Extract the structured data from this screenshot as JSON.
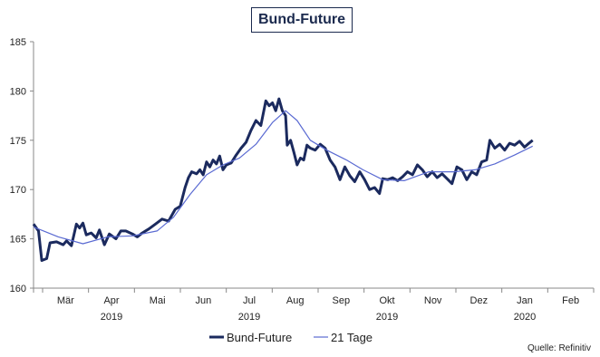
{
  "chart_data": {
    "type": "line",
    "title": "Bund-Future",
    "ylim": [
      160,
      185
    ],
    "yticks": [
      "160",
      "165",
      "170",
      "175",
      "180",
      "185"
    ],
    "xlim": [
      0,
      340
    ],
    "month_labels": [
      "Mär",
      "Apr",
      "Mai",
      "Jun",
      "Jul",
      "Aug",
      "Sep",
      "Okt",
      "Nov",
      "Dez",
      "Jan",
      "Feb"
    ],
    "year_labels": [
      "2019",
      "2019",
      "2019",
      "2020"
    ],
    "series": [
      {
        "name": "Bund-Future",
        "color": "#1b2a5e",
        "points": [
          [
            0,
            166.5
          ],
          [
            3,
            165.8
          ],
          [
            5,
            162.8
          ],
          [
            8,
            163.0
          ],
          [
            10,
            164.6
          ],
          [
            14,
            164.7
          ],
          [
            18,
            164.4
          ],
          [
            20,
            164.8
          ],
          [
            23,
            164.3
          ],
          [
            26,
            166.5
          ],
          [
            28,
            166.1
          ],
          [
            30,
            166.6
          ],
          [
            32,
            165.4
          ],
          [
            35,
            165.6
          ],
          [
            38,
            165.1
          ],
          [
            40,
            165.9
          ],
          [
            43,
            164.4
          ],
          [
            46,
            165.5
          ],
          [
            50,
            165.0
          ],
          [
            53,
            165.8
          ],
          [
            56,
            165.8
          ],
          [
            60,
            165.5
          ],
          [
            63,
            165.2
          ],
          [
            66,
            165.6
          ],
          [
            70,
            166.0
          ],
          [
            74,
            166.5
          ],
          [
            78,
            167.0
          ],
          [
            82,
            166.8
          ],
          [
            86,
            168.0
          ],
          [
            89,
            168.3
          ],
          [
            92,
            170.2
          ],
          [
            94,
            171.2
          ],
          [
            96,
            171.8
          ],
          [
            99,
            171.6
          ],
          [
            101,
            172.0
          ],
          [
            103,
            171.5
          ],
          [
            105,
            172.8
          ],
          [
            107,
            172.3
          ],
          [
            109,
            173.0
          ],
          [
            111,
            172.6
          ],
          [
            113,
            173.4
          ],
          [
            115,
            172.0
          ],
          [
            117,
            172.5
          ],
          [
            120,
            172.7
          ],
          [
            123,
            173.5
          ],
          [
            126,
            174.2
          ],
          [
            129,
            174.8
          ],
          [
            132,
            176.0
          ],
          [
            135,
            177.0
          ],
          [
            138,
            176.5
          ],
          [
            141,
            179.0
          ],
          [
            143,
            178.5
          ],
          [
            145,
            178.8
          ],
          [
            147,
            178.0
          ],
          [
            149,
            179.2
          ],
          [
            151,
            178.0
          ],
          [
            153,
            177.5
          ],
          [
            154,
            174.5
          ],
          [
            156,
            175.0
          ],
          [
            158,
            173.8
          ],
          [
            160,
            172.5
          ],
          [
            162,
            173.2
          ],
          [
            164,
            173.0
          ],
          [
            166,
            174.5
          ],
          [
            168,
            174.2
          ],
          [
            171,
            174.0
          ],
          [
            174,
            174.6
          ],
          [
            177,
            174.2
          ],
          [
            180,
            173.0
          ],
          [
            183,
            172.3
          ],
          [
            186,
            171.0
          ],
          [
            189,
            172.3
          ],
          [
            192,
            171.4
          ],
          [
            195,
            170.8
          ],
          [
            198,
            171.8
          ],
          [
            201,
            171.0
          ],
          [
            204,
            170.0
          ],
          [
            207,
            170.2
          ],
          [
            210,
            169.6
          ],
          [
            212,
            171.1
          ],
          [
            215,
            171.0
          ],
          [
            218,
            171.2
          ],
          [
            221,
            170.9
          ],
          [
            224,
            171.3
          ],
          [
            227,
            171.8
          ],
          [
            230,
            171.5
          ],
          [
            233,
            172.5
          ],
          [
            236,
            172.0
          ],
          [
            239,
            171.3
          ],
          [
            242,
            171.8
          ],
          [
            245,
            171.2
          ],
          [
            248,
            171.6
          ],
          [
            251,
            171.1
          ],
          [
            254,
            170.6
          ],
          [
            257,
            172.3
          ],
          [
            260,
            172.0
          ],
          [
            263,
            171.0
          ],
          [
            266,
            171.8
          ],
          [
            269,
            171.5
          ],
          [
            272,
            172.8
          ],
          [
            275,
            173.0
          ],
          [
            277,
            175.0
          ],
          [
            280,
            174.2
          ],
          [
            283,
            174.6
          ],
          [
            286,
            174.0
          ],
          [
            289,
            174.7
          ],
          [
            292,
            174.5
          ],
          [
            295,
            174.9
          ],
          [
            298,
            174.3
          ],
          [
            300,
            174.6
          ],
          [
            303,
            175.0
          ]
        ]
      },
      {
        "name": "21 Tage",
        "color": "#5a6ad2",
        "points": [
          [
            0,
            166.2
          ],
          [
            15,
            165.2
          ],
          [
            30,
            164.5
          ],
          [
            45,
            165.2
          ],
          [
            60,
            165.3
          ],
          [
            75,
            165.8
          ],
          [
            85,
            167.2
          ],
          [
            95,
            169.5
          ],
          [
            105,
            171.5
          ],
          [
            115,
            172.5
          ],
          [
            125,
            173.2
          ],
          [
            135,
            174.6
          ],
          [
            145,
            176.8
          ],
          [
            153,
            178.0
          ],
          [
            160,
            177.0
          ],
          [
            168,
            175.0
          ],
          [
            178,
            174.0
          ],
          [
            190,
            173.0
          ],
          [
            200,
            172.0
          ],
          [
            212,
            171.0
          ],
          [
            225,
            170.9
          ],
          [
            240,
            171.8
          ],
          [
            255,
            171.8
          ],
          [
            268,
            172.0
          ],
          [
            280,
            172.6
          ],
          [
            292,
            173.5
          ],
          [
            303,
            174.4
          ]
        ]
      }
    ],
    "legend": {
      "placement": "bottom-center"
    }
  },
  "source_text": "Quelle: Refinitiv"
}
